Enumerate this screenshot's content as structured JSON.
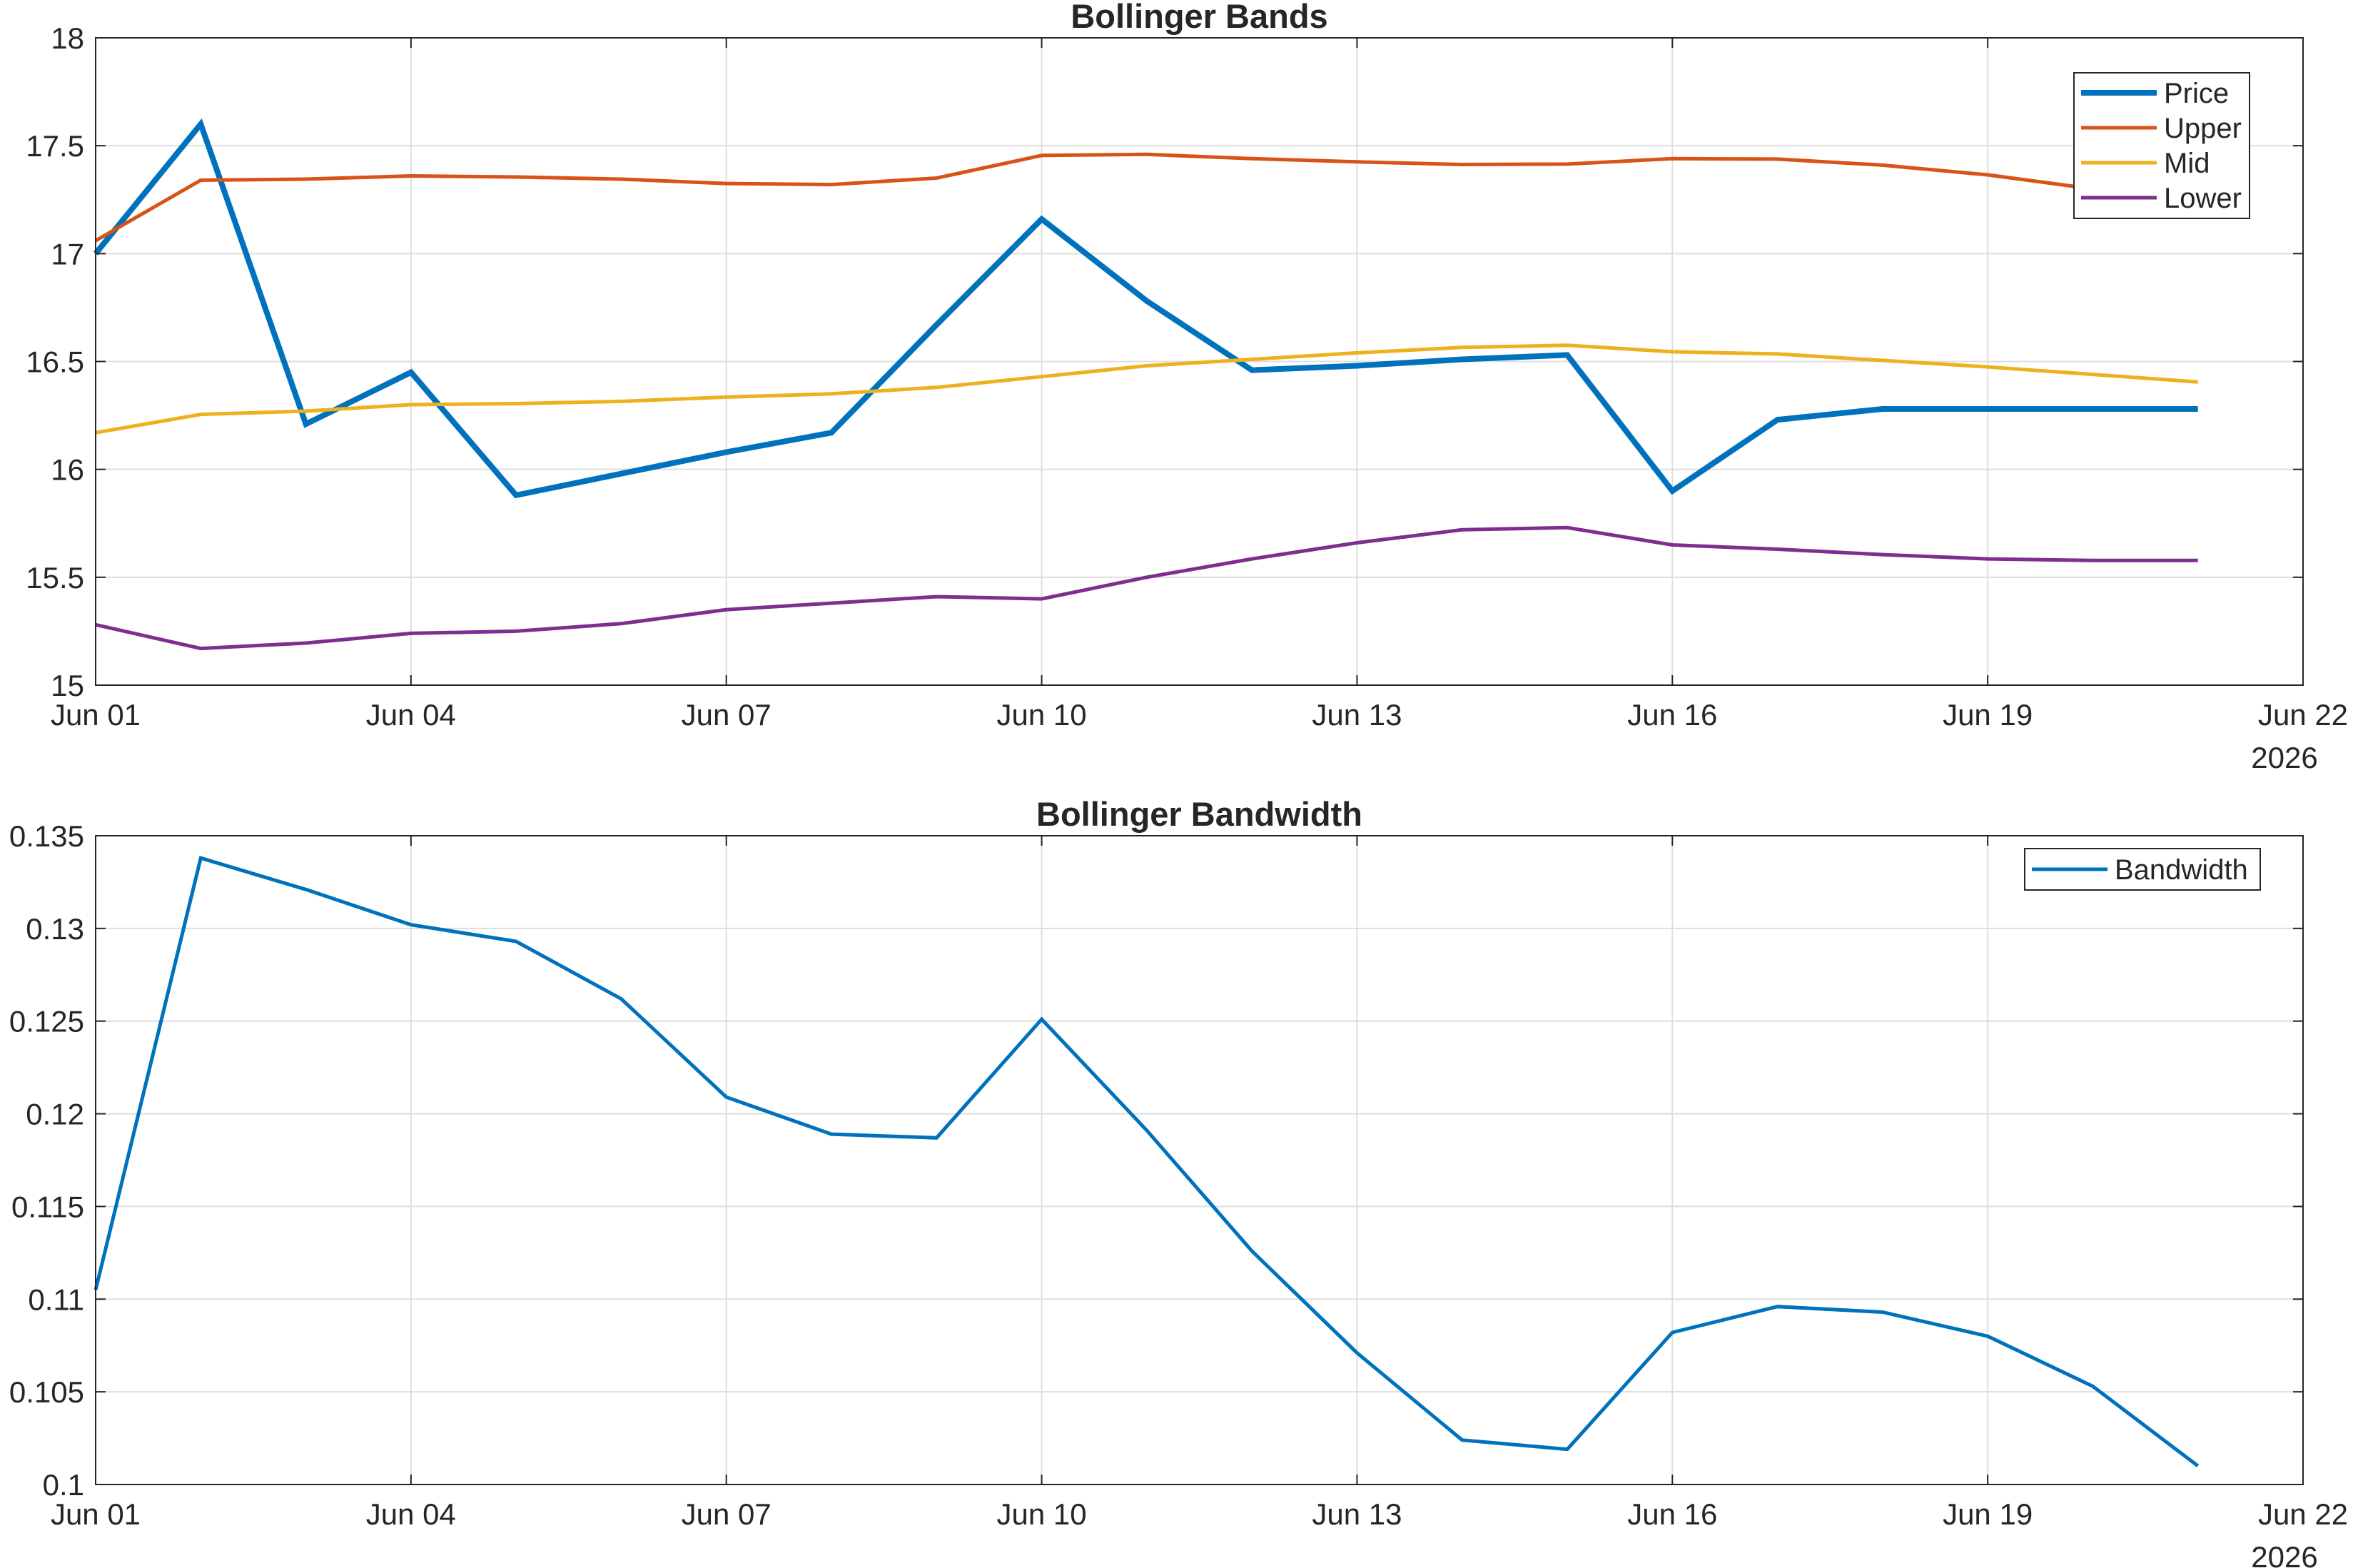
{
  "chart_data": [
    {
      "type": "line",
      "title": "Bollinger Bands",
      "x": [
        "2026-06-01",
        "2026-06-02",
        "2026-06-03",
        "2026-06-04",
        "2026-06-05",
        "2026-06-06",
        "2026-06-07",
        "2026-06-08",
        "2026-06-09",
        "2026-06-10",
        "2026-06-11",
        "2026-06-12",
        "2026-06-13",
        "2026-06-14",
        "2026-06-15",
        "2026-06-16",
        "2026-06-17",
        "2026-06-18",
        "2026-06-19",
        "2026-06-20",
        "2026-06-21"
      ],
      "xlim": [
        "2026-06-01",
        "2026-06-22"
      ],
      "xticks": [
        "Jun 01",
        "Jun 04",
        "Jun 07",
        "Jun 10",
        "Jun 13",
        "Jun 16",
        "Jun 19",
        "Jun 22"
      ],
      "xtick_days": [
        0,
        3,
        6,
        9,
        12,
        15,
        18,
        21
      ],
      "year_label": "2026",
      "ylim": [
        15,
        18
      ],
      "yticks": [
        "15",
        "15.5",
        "16",
        "16.5",
        "17",
        "17.5",
        "18"
      ],
      "ytick_values": [
        15,
        15.5,
        16,
        16.5,
        17,
        17.5,
        18
      ],
      "grid": true,
      "legend_position": "top-right",
      "series": [
        {
          "name": "Price",
          "color": "#0072BD",
          "values": [
            17.0,
            17.6,
            16.21,
            16.45,
            15.88,
            15.98,
            16.08,
            16.17,
            16.67,
            17.16,
            16.78,
            16.46,
            16.48,
            16.51,
            16.53,
            15.9,
            16.23,
            16.28,
            16.28,
            16.28,
            16.28
          ]
        },
        {
          "name": "Upper",
          "color": "#D95319",
          "values": [
            17.06,
            17.34,
            17.345,
            17.36,
            17.355,
            17.345,
            17.325,
            17.32,
            17.35,
            17.455,
            17.46,
            17.44,
            17.425,
            17.413,
            17.415,
            17.44,
            17.438,
            17.41,
            17.365,
            17.3,
            17.22
          ]
        },
        {
          "name": "Mid",
          "color": "#EDB120",
          "values": [
            16.17,
            16.255,
            16.27,
            16.3,
            16.305,
            16.315,
            16.335,
            16.35,
            16.38,
            16.43,
            16.48,
            16.51,
            16.54,
            16.565,
            16.575,
            16.545,
            16.535,
            16.505,
            16.475,
            16.44,
            16.405
          ]
        },
        {
          "name": "Lower",
          "color": "#7E2F8E",
          "values": [
            15.28,
            15.17,
            15.195,
            15.24,
            15.25,
            15.285,
            15.35,
            15.38,
            15.41,
            15.4,
            15.5,
            15.585,
            15.66,
            15.72,
            15.73,
            15.65,
            15.63,
            15.605,
            15.585,
            15.578,
            15.578
          ]
        }
      ]
    },
    {
      "type": "line",
      "title": "Bollinger Bandwidth",
      "x": [
        "2026-06-01",
        "2026-06-02",
        "2026-06-03",
        "2026-06-04",
        "2026-06-05",
        "2026-06-06",
        "2026-06-07",
        "2026-06-08",
        "2026-06-09",
        "2026-06-10",
        "2026-06-11",
        "2026-06-12",
        "2026-06-13",
        "2026-06-14",
        "2026-06-15",
        "2026-06-16",
        "2026-06-17",
        "2026-06-18",
        "2026-06-19",
        "2026-06-20",
        "2026-06-21"
      ],
      "xlim": [
        "2026-06-01",
        "2026-06-22"
      ],
      "xticks": [
        "Jun 01",
        "Jun 04",
        "Jun 07",
        "Jun 10",
        "Jun 13",
        "Jun 16",
        "Jun 19",
        "Jun 22"
      ],
      "xtick_days": [
        0,
        3,
        6,
        9,
        12,
        15,
        18,
        21
      ],
      "year_label": "2026",
      "ylim": [
        0.1,
        0.135
      ],
      "yticks": [
        "0.1",
        "0.105",
        "0.11",
        "0.115",
        "0.12",
        "0.125",
        "0.13",
        "0.135"
      ],
      "ytick_values": [
        0.1,
        0.105,
        0.11,
        0.115,
        0.12,
        0.125,
        0.13,
        0.135
      ],
      "grid": true,
      "legend_position": "top-right",
      "series": [
        {
          "name": "Bandwidth",
          "color": "#0072BD",
          "values": [
            0.1105,
            0.1338,
            0.1321,
            0.1302,
            0.1293,
            0.1262,
            0.1209,
            0.1189,
            0.1187,
            0.1251,
            0.1191,
            0.1126,
            0.1071,
            0.1024,
            0.1019,
            0.1082,
            0.1096,
            0.1093,
            0.108,
            0.1053,
            0.101
          ]
        }
      ]
    }
  ]
}
